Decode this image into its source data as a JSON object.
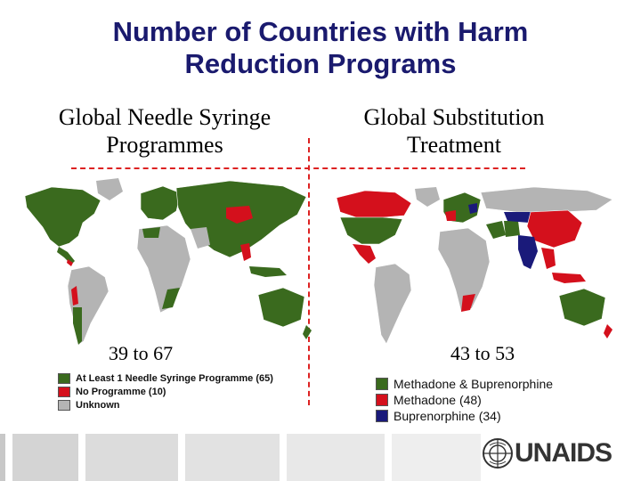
{
  "title": {
    "line1": "Number of Countries with Harm",
    "line2": "Reduction Programs"
  },
  "left": {
    "heading_line1": "Global Needle Syringe",
    "heading_line2": "Programmes",
    "range": "39 to 67",
    "legend": [
      {
        "label": "At Least 1 Needle Syringe Programme (65)",
        "color": "#3a6a1e"
      },
      {
        "label": "No Programme (10)",
        "color": "#d4101c"
      },
      {
        "label": "Unknown",
        "color": "#b4b4b4"
      }
    ]
  },
  "right": {
    "heading_line1": "Global Substitution",
    "heading_line2": "Treatment",
    "range": "43 to 53",
    "legend": [
      {
        "label": "Methadone & Buprenorphine",
        "color": "#3a6a1e"
      },
      {
        "label": "Methadone (48)",
        "color": "#d4101c"
      },
      {
        "label": "Buprenorphine (34)",
        "color": "#1a1a7a"
      }
    ]
  },
  "logo": {
    "text": "UNAIDS"
  },
  "colors": {
    "title": "#1a1a6e",
    "dash": "#dd2222",
    "green": "#3a6a1e",
    "red": "#d4101c",
    "navy": "#1a1a7a",
    "gray": "#b4b4b4"
  }
}
